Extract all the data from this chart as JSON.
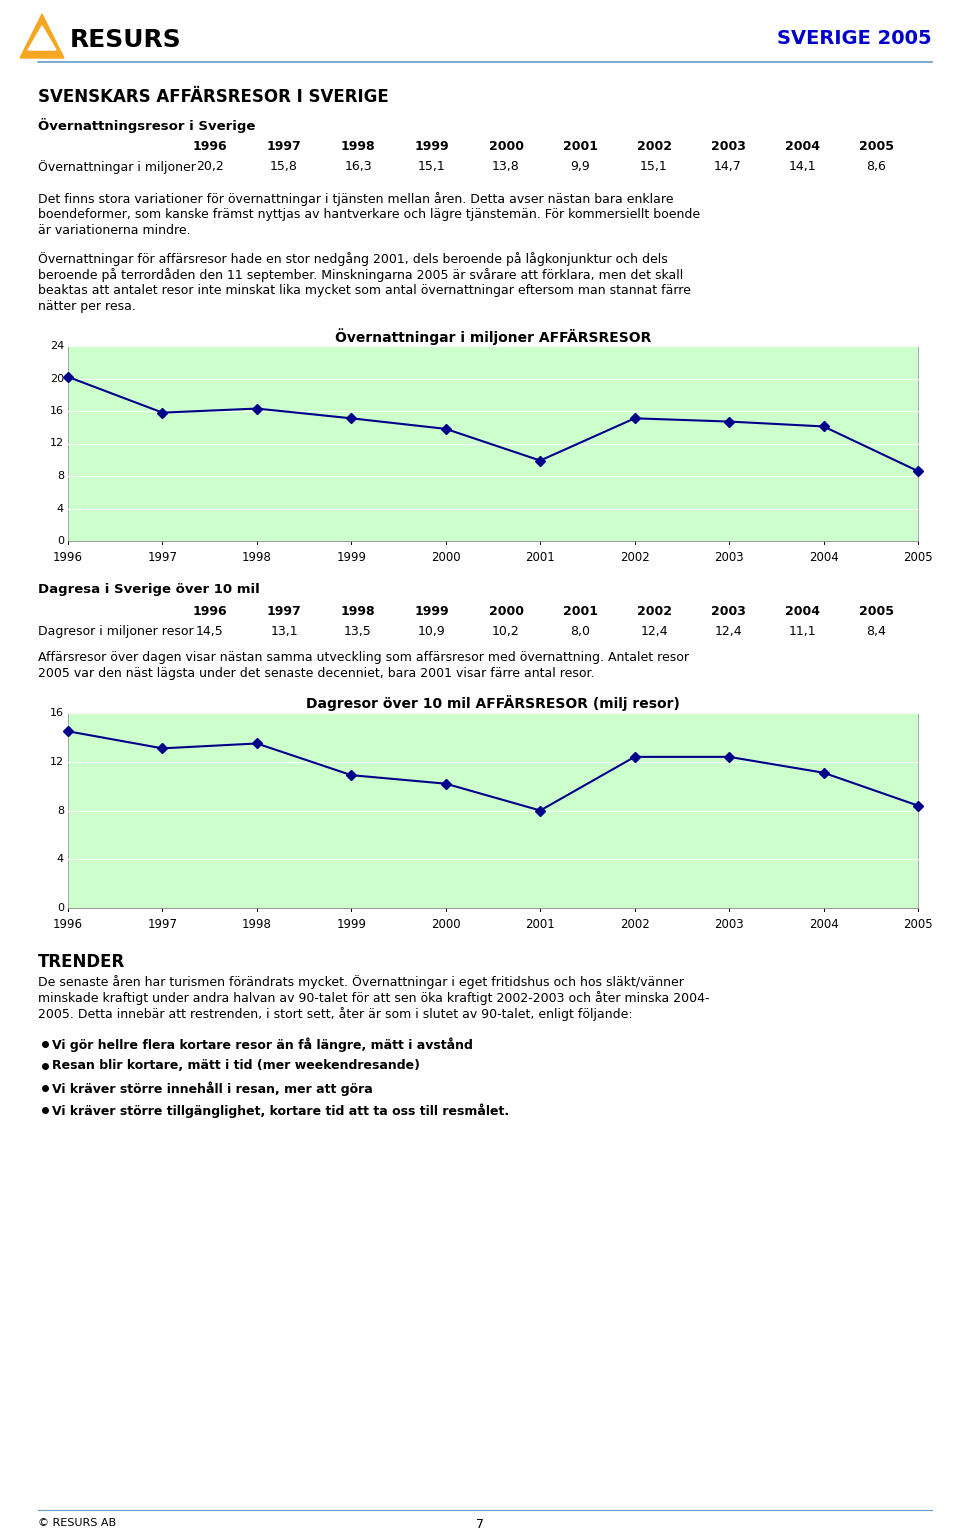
{
  "page_title": "SVERIGE 2005",
  "section_title": "SVENSKARS AFFÄRSRESOR I SVERIGE",
  "subsection1_title": "Övernattningsresor i Sverige",
  "table1_years": [
    "1996",
    "1997",
    "1998",
    "1999",
    "2000",
    "2001",
    "2002",
    "2003",
    "2004",
    "2005"
  ],
  "table1_label": "Övernattningar i miljoner",
  "table1_values_str": [
    "20,2",
    "15,8",
    "16,3",
    "15,1",
    "13,8",
    "9,9",
    "15,1",
    "14,7",
    "14,1",
    "8,6"
  ],
  "chart1_title": "Övernattningar i miljoner AFFÄRSRESOR",
  "chart1_years": [
    1996,
    1997,
    1998,
    1999,
    2000,
    2001,
    2002,
    2003,
    2004,
    2005
  ],
  "chart1_values": [
    20.2,
    15.8,
    16.3,
    15.1,
    13.8,
    9.9,
    15.1,
    14.7,
    14.1,
    8.6
  ],
  "chart1_ylim": [
    0,
    24
  ],
  "chart1_yticks": [
    0,
    4,
    8,
    12,
    16,
    20,
    24
  ],
  "subsection2_title": "Dagresa i Sverige över 10 mil",
  "table2_years": [
    "1996",
    "1997",
    "1998",
    "1999",
    "2000",
    "2001",
    "2002",
    "2003",
    "2004",
    "2005"
  ],
  "table2_label": "Dagresor i miljoner resor",
  "table2_values_str": [
    "14,5",
    "13,1",
    "13,5",
    "10,9",
    "10,2",
    "8,0",
    "12,4",
    "12,4",
    "11,1",
    "8,4"
  ],
  "chart2_title": "Dagresor över 10 mil AFFÄRSRESOR (milj resor)",
  "chart2_years": [
    1996,
    1997,
    1998,
    1999,
    2000,
    2001,
    2002,
    2003,
    2004,
    2005
  ],
  "chart2_values": [
    14.5,
    13.1,
    13.5,
    10.9,
    10.2,
    8.0,
    12.4,
    12.4,
    11.1,
    8.4
  ],
  "chart2_ylim": [
    0,
    16
  ],
  "chart2_yticks": [
    0,
    4,
    8,
    12,
    16
  ],
  "trender_title": "TRENDER",
  "bullet_points": [
    "Vi gör hellre flera kortare resor än få längre, mätt i avstånd",
    "Resan blir kortare, mätt i tid (mer weekendresande)",
    "Vi kräver större innehåll i resan, mer att göra",
    "Vi kräver större tillgänglighet, kortare tid att ta oss till resmålet."
  ],
  "footer_left": "© RESURS AB",
  "footer_center": "7",
  "line_color": "#00008B",
  "chart_bg": "#CCFFCC",
  "header_blue": "#0000CC",
  "separator_blue": "#6699CC",
  "text1_lines": [
    "Det finns stora variationer för övernattningar i tjänsten mellan åren. Detta avser nästan bara enklare",
    "boendeformer, som kanske främst nyttjas av hantverkare och lägre tjänstemän. För kommersiellt boende",
    "är variationerna mindre."
  ],
  "text2_lines": [
    "Övernattningar för affärsresor hade en stor nedgång 2001, dels beroende på lågkonjunktur och dels",
    "beroende på terrordåden den 11 september. Minskningarna 2005 är svårare att förklara, men det skall",
    "beaktas att antalet resor inte minskat lika mycket som antal övernattningar eftersom man stannat färre",
    "nätter per resa."
  ],
  "text3_lines": [
    "Affärsresor över dagen visar nästan samma utveckling som affärsresor med övernattning. Antalet resor",
    "2005 var den näst lägsta under det senaste decenniet, bara 2001 visar färre antal resor."
  ],
  "trender_lines": [
    "De senaste åren har turismen förändrats mycket. Övernattningar i eget fritidshus och hos släkt/vänner",
    "minskade kraftigt under andra halvan av 90-talet för att sen öka kraftigt 2002-2003 och åter minska 2004-",
    "2005. Detta innebär att restrenden, i stort sett, åter är som i slutet av 90-talet, enligt följande:"
  ]
}
